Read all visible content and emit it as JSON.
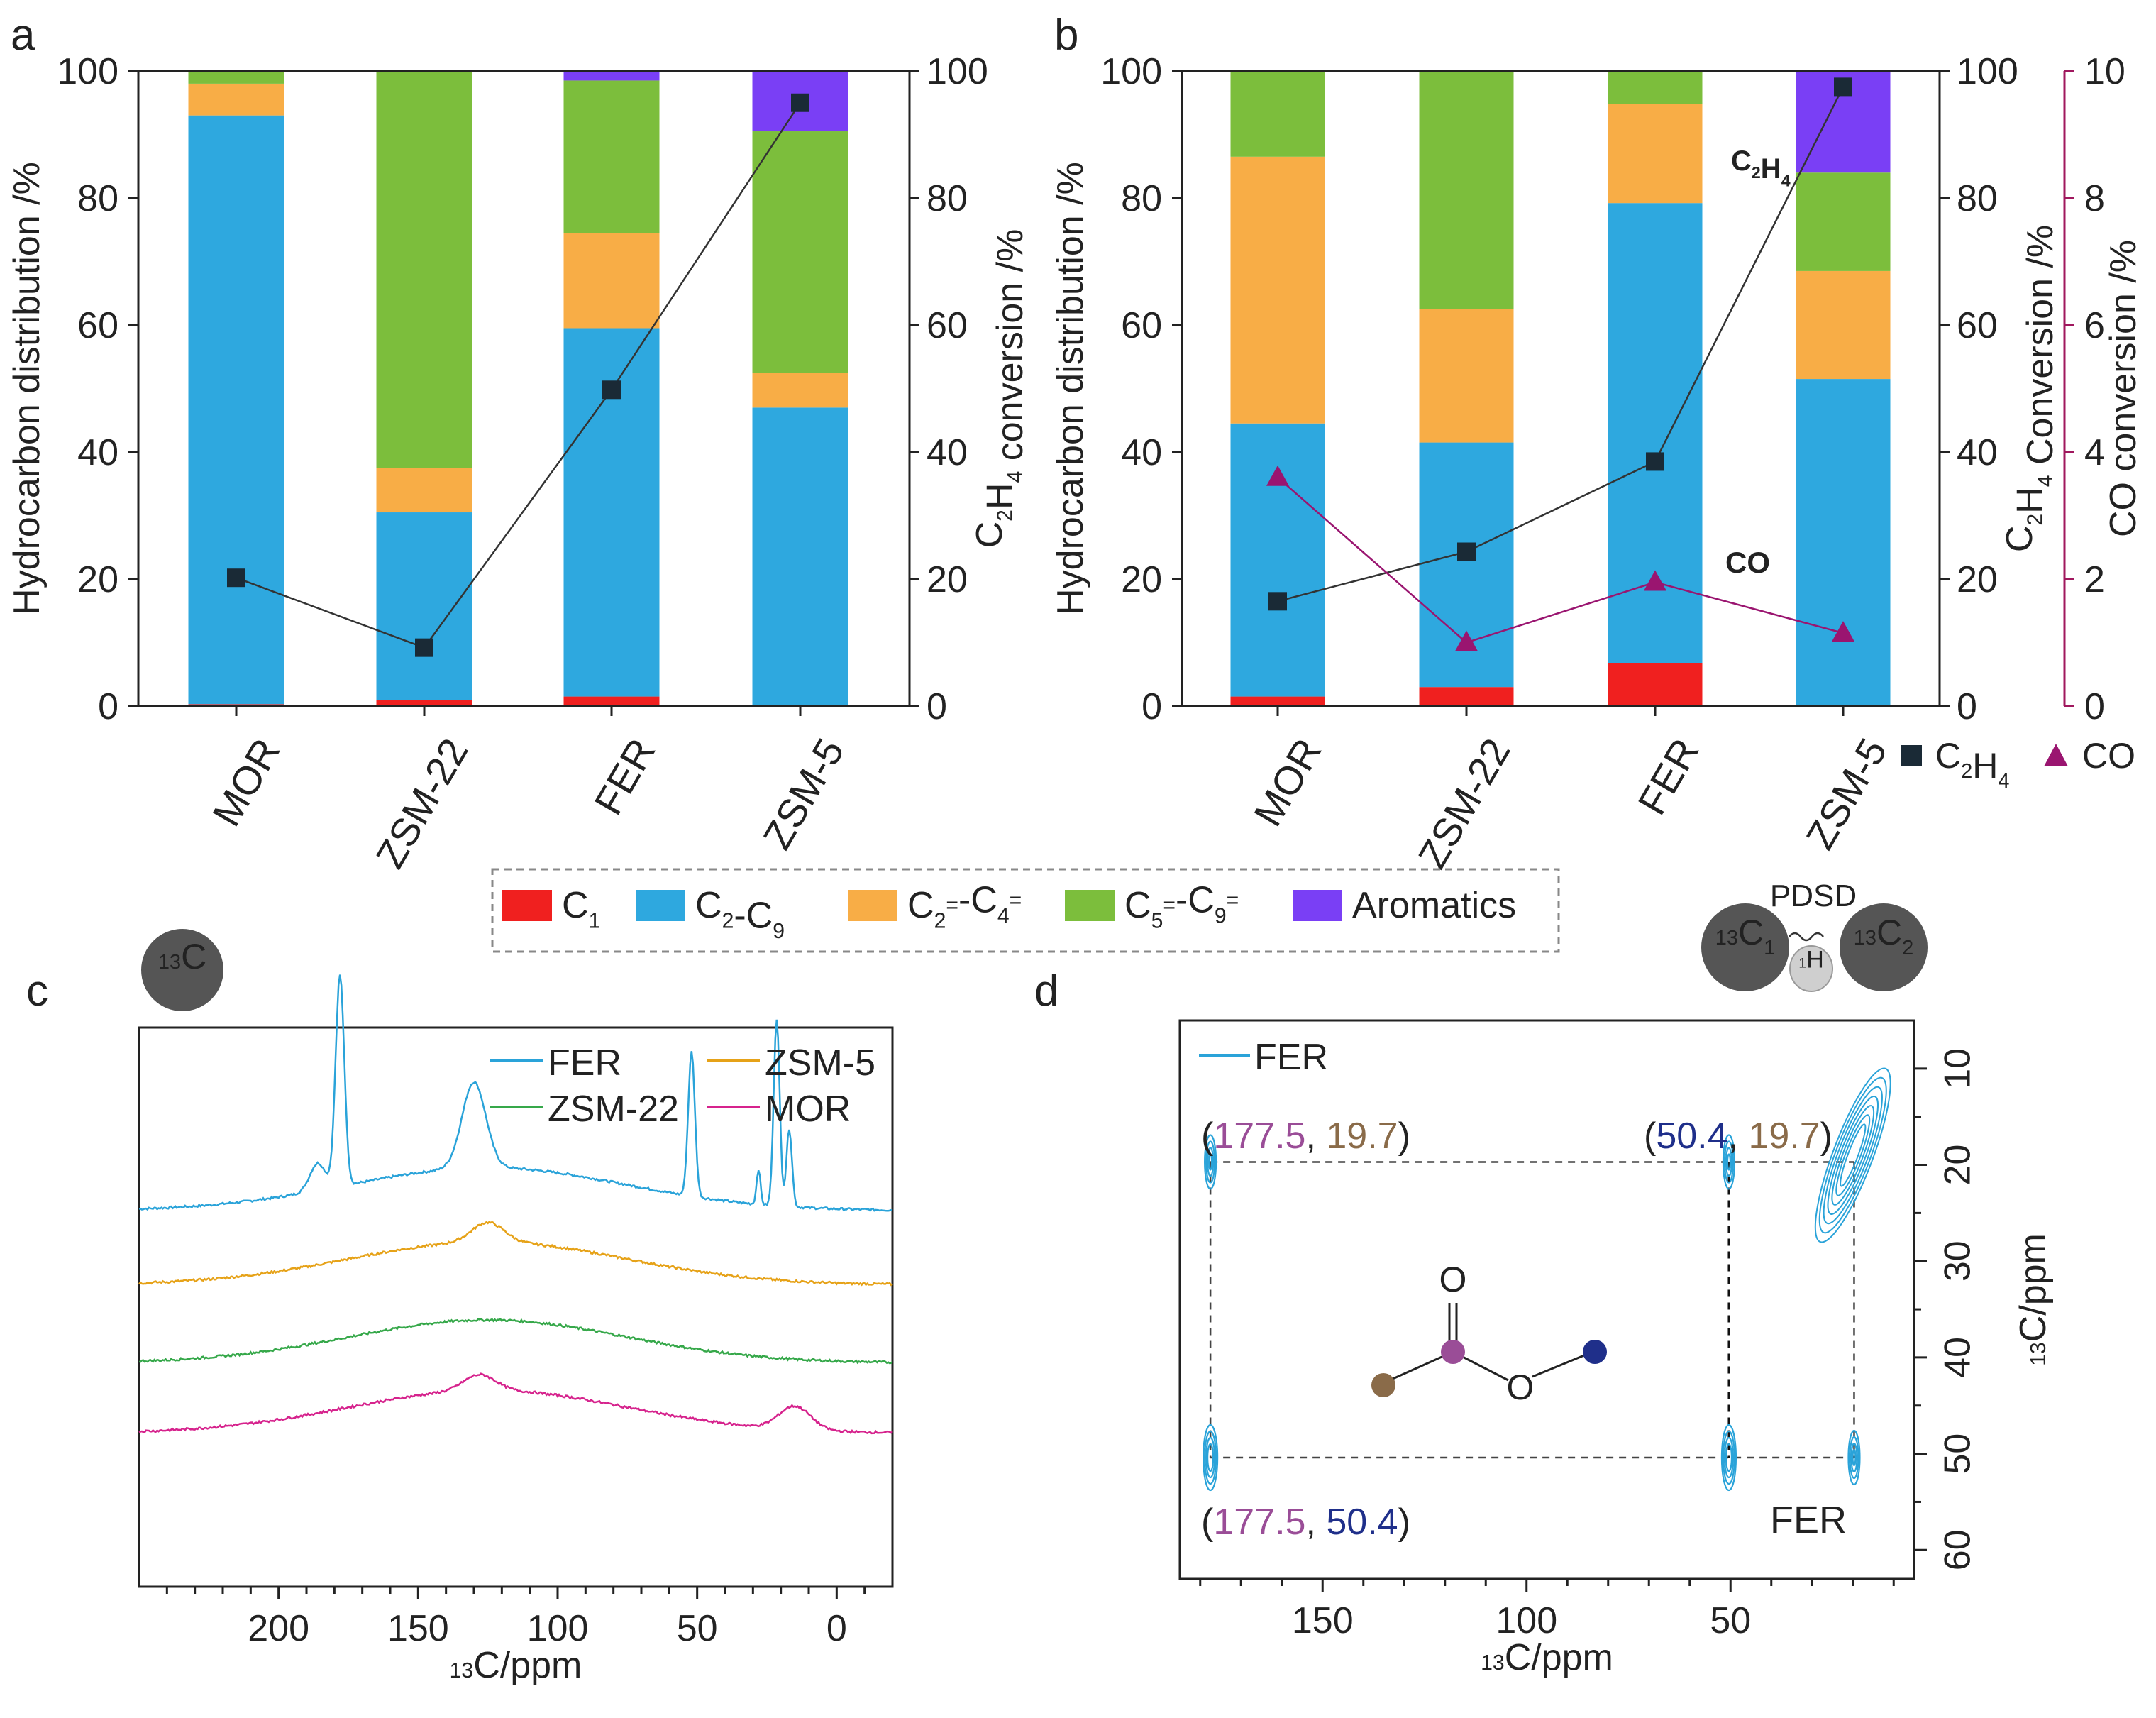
{
  "panel_letters": [
    "a",
    "b",
    "c",
    "d"
  ],
  "colors": {
    "C1": "#f0201f",
    "C2-C9": "#2ea8df",
    "C2=-C4=": "#f8ad46",
    "C5=-C9=": "#7cbe3c",
    "Aromatics": "#7a3ff5",
    "C2H4_marker": "#1a2a36",
    "CO_line": "#9a1570",
    "CO_axis": "#a0185e",
    "spec_FER": "#2aa3d9",
    "spec_ZSM5": "#e6a218",
    "spec_ZSM22": "#36a84a",
    "spec_MOR": "#d6238d",
    "guide": "#444444",
    "mol_purple": "#9a4d97",
    "mol_brown": "#8a6b49",
    "mol_navy": "#1f2f8a"
  },
  "legend_box": {
    "items": [
      {
        "key": "C1",
        "base": "C",
        "sub": "1",
        "sup": ""
      },
      {
        "key": "C2-C9",
        "parts": [
          [
            "C",
            ""
          ],
          [
            "2",
            "sub"
          ],
          [
            "-C",
            ""
          ],
          [
            "9",
            "sub"
          ]
        ]
      },
      {
        "key": "C2=-C4=",
        "parts": [
          [
            "C",
            ""
          ],
          [
            "2",
            "sub"
          ],
          [
            "=",
            "sup"
          ],
          [
            "-C",
            ""
          ],
          [
            "4",
            "sub"
          ],
          [
            "=",
            "sup"
          ]
        ]
      },
      {
        "key": "C5=-C9=",
        "parts": [
          [
            "C",
            ""
          ],
          [
            "5",
            "sub"
          ],
          [
            "=",
            "sup"
          ],
          [
            "-C",
            ""
          ],
          [
            "9",
            "sub"
          ],
          [
            "=",
            "sup"
          ]
        ]
      },
      {
        "key": "Aromatics",
        "parts": [
          [
            "Aromatics",
            ""
          ]
        ]
      }
    ]
  },
  "chart_data": [
    {
      "panel": "a",
      "type": "bar",
      "stacked": true,
      "categories": [
        "MOR",
        "ZSM-22",
        "FER",
        "ZSM-5"
      ],
      "ylabel_left": "Hydrocarbon distribution /%",
      "ylabel_right": "C2H4 conversion /%",
      "ylim_left": [
        0,
        100
      ],
      "ylim_right": [
        0,
        100
      ],
      "yticks": [
        0,
        20,
        40,
        60,
        80,
        100
      ],
      "series": [
        {
          "name": "C1",
          "values": [
            0.3,
            1.0,
            1.5,
            0.2
          ]
        },
        {
          "name": "C2-C9",
          "values": [
            92.7,
            29.5,
            58.0,
            46.8
          ]
        },
        {
          "name": "C2=-C4=",
          "values": [
            5.0,
            7.0,
            15.0,
            5.5
          ]
        },
        {
          "name": "C5=-C9=",
          "values": [
            2.0,
            62.5,
            24.0,
            38.0
          ]
        },
        {
          "name": "Aromatics",
          "values": [
            0.0,
            0.0,
            1.5,
            9.5
          ]
        }
      ],
      "line": {
        "name": "C2H4",
        "values": [
          20.2,
          9.2,
          49.8,
          95.0
        ]
      }
    },
    {
      "panel": "b",
      "type": "bar",
      "stacked": true,
      "categories": [
        "MOR",
        "ZSM-22",
        "FER",
        "ZSM-5"
      ],
      "ylabel_left": "Hydrocarbon distribution /%",
      "ylabel_right1": "C2H4 Conversion /%",
      "ylabel_right2": "CO conversion /%",
      "ylim_left": [
        0,
        100
      ],
      "ylim_right1": [
        0,
        100
      ],
      "ylim_right2": [
        0,
        10
      ],
      "yticks": [
        0,
        20,
        40,
        60,
        80,
        100
      ],
      "yticks_co": [
        0,
        2,
        4,
        6,
        8,
        10
      ],
      "series": [
        {
          "name": "C1",
          "values": [
            1.5,
            3.0,
            6.8,
            0.0
          ]
        },
        {
          "name": "C2-C9",
          "values": [
            43.0,
            38.5,
            72.4,
            51.5
          ]
        },
        {
          "name": "C2=-C4=",
          "values": [
            42.0,
            21.0,
            15.6,
            17.0
          ]
        },
        {
          "name": "C5=-C9=",
          "values": [
            13.5,
            37.5,
            5.2,
            15.5
          ]
        },
        {
          "name": "Aromatics",
          "values": [
            0.0,
            0.0,
            0.0,
            16.0
          ]
        }
      ],
      "line": {
        "name": "C2H4",
        "values": [
          16.5,
          24.3,
          38.5,
          97.5
        ]
      },
      "line2": {
        "name": "CO",
        "values": [
          3.6,
          1.0,
          1.95,
          1.15
        ]
      },
      "annotations": {
        "c2h4_label": "C2H4",
        "co_label": "CO"
      },
      "legend": {
        "c2h4": "C2H4",
        "co": "CO"
      }
    },
    {
      "panel": "c",
      "type": "line",
      "title_badge": "13C",
      "xlabel": "13C/ppm",
      "xlim": [
        250,
        -20
      ],
      "xticks": [
        200,
        150,
        100,
        50,
        0
      ],
      "series": [
        {
          "name": "FER",
          "offset": 3.0,
          "peaks": [
            [
              178,
              2.7,
              2.2
            ],
            [
              130,
              1.1,
              6
            ],
            [
              52,
              1.85,
              1.7
            ],
            [
              21.5,
              2.4,
              1.5
            ],
            [
              17,
              1.0,
              1.4
            ],
            [
              28,
              0.45,
              1.0
            ],
            [
              186,
              0.35,
              4
            ]
          ]
        },
        {
          "name": "ZSM-5",
          "offset": 2.05,
          "peaks": [
            [
              125,
              0.25,
              8
            ]
          ]
        },
        {
          "name": "ZSM-22",
          "offset": 1.05,
          "peaks": []
        },
        {
          "name": "MOR",
          "offset": 0.15,
          "peaks": [
            [
              128,
              0.2,
              8
            ],
            [
              15,
              0.3,
              8
            ]
          ]
        }
      ],
      "legend": [
        "FER",
        "ZSM-5",
        "ZSM-22",
        "MOR"
      ]
    },
    {
      "panel": "d",
      "type": "scatter",
      "badge_label": "PDSD",
      "badge_c1": "13C1",
      "badge_h": "1H",
      "badge_c2": "13C2",
      "xlabel": "13C/ppm",
      "ylabel": "13C/ppm",
      "xlim": [
        185,
        5
      ],
      "ylim": [
        5,
        63
      ],
      "xticks": [
        150,
        100,
        50
      ],
      "yticks": [
        10,
        20,
        30,
        40,
        50,
        60
      ],
      "legend": "FER",
      "sample_label": "FER",
      "cross_peaks": [
        {
          "x": 177.5,
          "y": 19.7
        },
        {
          "x": 177.5,
          "y": 50.4
        },
        {
          "x": 50.4,
          "y": 19.7
        },
        {
          "x": 50.4,
          "y": 50.4
        },
        {
          "x": 19.7,
          "y": 50.4
        }
      ],
      "diagonal": {
        "x_from": 28,
        "y_from": 28,
        "x_to": 12,
        "y_to": 10
      },
      "annotations": {
        "tl": {
          "open": "(",
          "a": "177.5",
          "sep": ", ",
          "b": "19.7",
          "close": ")"
        },
        "tr": {
          "open": "(",
          "a": "50.4",
          "sep": ", ",
          "b": "19.7",
          "close": ")"
        },
        "bl": {
          "open": "(",
          "a": "177.5",
          "sep": ", ",
          "b": "50.4",
          "close": ")"
        }
      },
      "molecule": {
        "O_top": "O",
        "O_ester": "O"
      }
    }
  ]
}
